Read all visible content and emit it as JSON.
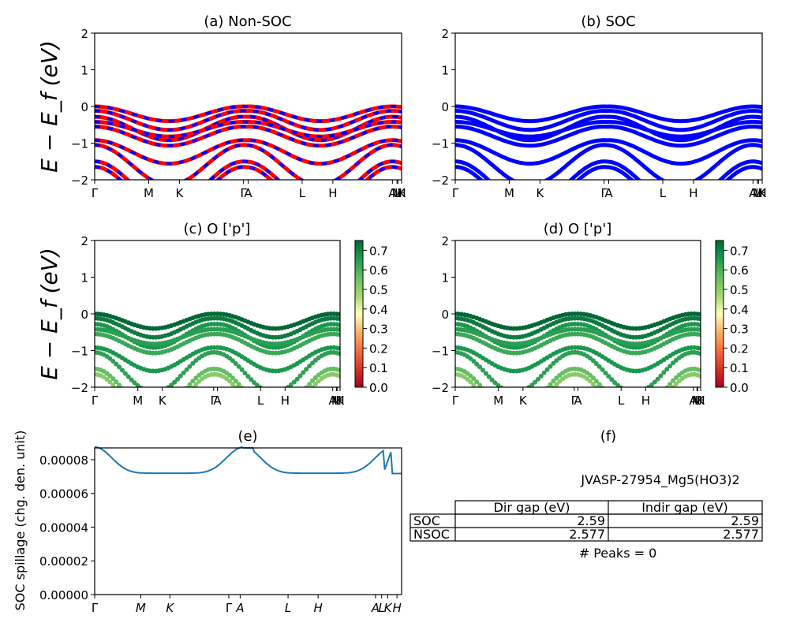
{
  "chart_data": [
    {
      "type": "line",
      "title": "(a) Non-SOC",
      "ylabel": "E − E_f (eV)",
      "ylim": [
        -2,
        2
      ],
      "yticks": [
        "2",
        "1",
        "0",
        "−1",
        "−2"
      ],
      "xticks": [
        "Γ",
        "M",
        "K",
        "Γ",
        "A",
        "L",
        "H",
        "A",
        "M",
        "L",
        "H",
        "K"
      ],
      "xtick_pos": [
        0,
        0.176,
        0.276,
        0.485,
        0.5,
        0.676,
        0.776,
        0.97,
        0.985,
        0.988,
        1.0,
        1.0
      ],
      "series": [
        {
          "color": "#ff0000",
          "style": "solid"
        },
        {
          "color": "#0000ff",
          "style": "dashed"
        }
      ]
    },
    {
      "type": "line",
      "title": "(b) SOC",
      "ylim": [
        -2,
        2
      ],
      "yticks": [
        "2",
        "1",
        "0",
        "−1",
        "−2"
      ],
      "xticks": [
        "Γ",
        "M",
        "K",
        "Γ",
        "A",
        "L",
        "H",
        "A",
        "M",
        "L",
        "H",
        "K"
      ],
      "series": [
        {
          "color": "#0000ff",
          "style": "solid"
        }
      ]
    },
    {
      "type": "scatter",
      "title": "(c)  O ['p']",
      "ylabel": "E − E_f (eV)",
      "ylim": [
        -2,
        2
      ],
      "yticks": [
        "2",
        "1",
        "0",
        "−1",
        "−2"
      ],
      "xticks": [
        "Γ",
        "M",
        "K",
        "Γ",
        "A",
        "L",
        "H",
        "A",
        "M",
        "L",
        "H",
        "K"
      ],
      "colorbar": {
        "ticks": [
          "0.7",
          "0.6",
          "0.5",
          "0.4",
          "0.3",
          "0.2",
          "0.1",
          "0.0"
        ],
        "range": [
          0,
          0.75
        ],
        "cmap": "RdYlGn"
      }
    },
    {
      "type": "scatter",
      "title": "(d) O ['p']",
      "ylim": [
        -2,
        2
      ],
      "yticks": [
        "2",
        "1",
        "0",
        "−1",
        "−2"
      ],
      "xticks": [
        "Γ",
        "M",
        "K",
        "Γ",
        "A",
        "L",
        "H",
        "A",
        "M",
        "L",
        "H",
        "K"
      ],
      "colorbar": {
        "ticks": [
          "0.7",
          "0.6",
          "0.5",
          "0.4",
          "0.3",
          "0.2",
          "0.1",
          "0.0"
        ],
        "range": [
          0,
          0.75
        ],
        "cmap": "RdYlGn"
      }
    },
    {
      "type": "line",
      "title": "(e)",
      "ylabel": "SOC spillage (chg. den. unit)",
      "ylim": [
        0,
        8.7e-05
      ],
      "yticks": [
        "0.00000",
        "0.00002",
        "0.00004",
        "0.00006",
        "0.00008"
      ],
      "yvals": [
        0,
        2e-05,
        4e-05,
        6e-05,
        8e-05
      ],
      "xticks": [
        "Γ",
        "M",
        "K",
        "Γ",
        "A",
        "L",
        "H",
        "A",
        "L",
        "K",
        "H"
      ],
      "series": [
        {
          "color": "#1f77b4"
        }
      ]
    },
    {
      "type": "table",
      "title": "(f)",
      "material": "JVASP-27954_Mg5(HO3)2",
      "columns": [
        "Dir gap (eV)",
        "Indir gap (eV)"
      ],
      "rows": [
        {
          "label": "SOC",
          "values": [
            "2.59",
            "2.59"
          ]
        },
        {
          "label": "NSOC",
          "values": [
            "2.577",
            "2.577"
          ]
        }
      ],
      "peaks": "# Peaks = 0"
    }
  ]
}
